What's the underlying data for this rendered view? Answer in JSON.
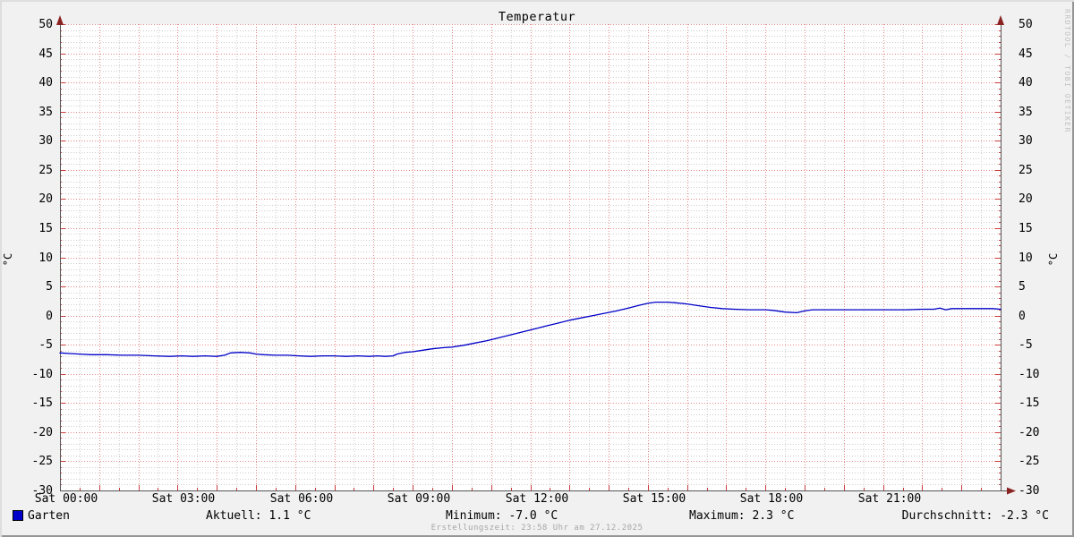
{
  "title": "Temperatur",
  "watermark": "RRDTOOL / TOBI OETIKER",
  "footer": "Erstellungszeit: 23:58 Uhr am 27.12.2025",
  "y_axis": {
    "unit_left": "°C",
    "unit_right": "°C",
    "ticks": [
      50,
      45,
      40,
      35,
      30,
      25,
      20,
      15,
      10,
      5,
      0,
      -5,
      -10,
      -15,
      -20,
      -25,
      -30
    ]
  },
  "x_axis": {
    "labels": [
      {
        "hour": 0,
        "text": "Sat 00:00"
      },
      {
        "hour": 3,
        "text": "Sat 03:00"
      },
      {
        "hour": 6,
        "text": "Sat 06:00"
      },
      {
        "hour": 9,
        "text": "Sat 09:00"
      },
      {
        "hour": 12,
        "text": "Sat 12:00"
      },
      {
        "hour": 15,
        "text": "Sat 15:00"
      },
      {
        "hour": 18,
        "text": "Sat 18:00"
      },
      {
        "hour": 21,
        "text": "Sat 21:00"
      }
    ]
  },
  "legend": {
    "series_label": "Garten",
    "series_color": "#0000c8",
    "aktuell": "Aktuell: 1.1 °C",
    "minimum": "Minimum: -7.0 °C",
    "maximum": "Maximum: 2.3 °C",
    "durchschnitt": "Durchschnitt: -2.3 °C"
  },
  "colors": {
    "background": "#f1f1f1",
    "canvas": "#ffffff",
    "major_grid": "#e06060",
    "minor_grid": "#cdcdcd",
    "axis": "#555555",
    "arrow": "#8b2222",
    "tick": "#cc3c3c",
    "line": "#0000c8",
    "watermark": "#c2c2c2",
    "footer_text": "#a6a6a6"
  },
  "chart_data": {
    "type": "line",
    "title": "Temperatur",
    "xlabel": "",
    "ylabel": "°C",
    "ylim": [
      -30,
      50
    ],
    "xlim_hours": [
      0,
      24
    ],
    "x_tick_labels": [
      "Sat 00:00",
      "Sat 03:00",
      "Sat 06:00",
      "Sat 09:00",
      "Sat 12:00",
      "Sat 15:00",
      "Sat 18:00",
      "Sat 21:00"
    ],
    "grid": {
      "x_major_hours": 1,
      "x_minor_hours": 0.5,
      "y_major": 5,
      "y_minor": 1,
      "style": "dotted"
    },
    "legend_position": "bottom",
    "stats": {
      "aktuell_c": 1.1,
      "minimum_c": -7.0,
      "maximum_c": 2.3,
      "durchschnitt_c": -2.3
    },
    "series": [
      {
        "name": "Garten",
        "color": "#0000c8",
        "points_hours_celsius": [
          [
            0.0,
            -6.4
          ],
          [
            0.25,
            -6.5
          ],
          [
            0.5,
            -6.6
          ],
          [
            0.8,
            -6.7
          ],
          [
            1.2,
            -6.7
          ],
          [
            1.6,
            -6.8
          ],
          [
            2.0,
            -6.8
          ],
          [
            2.4,
            -6.9
          ],
          [
            2.8,
            -7.0
          ],
          [
            3.1,
            -6.9
          ],
          [
            3.4,
            -7.0
          ],
          [
            3.7,
            -6.9
          ],
          [
            4.0,
            -7.0
          ],
          [
            4.2,
            -6.8
          ],
          [
            4.35,
            -6.4
          ],
          [
            4.6,
            -6.3
          ],
          [
            4.85,
            -6.4
          ],
          [
            5.0,
            -6.6
          ],
          [
            5.2,
            -6.7
          ],
          [
            5.5,
            -6.8
          ],
          [
            5.8,
            -6.8
          ],
          [
            6.1,
            -6.9
          ],
          [
            6.4,
            -7.0
          ],
          [
            6.7,
            -6.9
          ],
          [
            7.0,
            -6.9
          ],
          [
            7.3,
            -7.0
          ],
          [
            7.6,
            -6.9
          ],
          [
            7.9,
            -7.0
          ],
          [
            8.1,
            -6.9
          ],
          [
            8.3,
            -7.0
          ],
          [
            8.5,
            -6.9
          ],
          [
            8.6,
            -6.6
          ],
          [
            8.8,
            -6.3
          ],
          [
            9.0,
            -6.2
          ],
          [
            9.2,
            -6.0
          ],
          [
            9.5,
            -5.7
          ],
          [
            9.8,
            -5.5
          ],
          [
            10.0,
            -5.4
          ],
          [
            10.3,
            -5.1
          ],
          [
            10.6,
            -4.7
          ],
          [
            10.9,
            -4.3
          ],
          [
            11.2,
            -3.8
          ],
          [
            11.5,
            -3.3
          ],
          [
            11.8,
            -2.8
          ],
          [
            12.1,
            -2.3
          ],
          [
            12.4,
            -1.8
          ],
          [
            12.7,
            -1.3
          ],
          [
            13.0,
            -0.8
          ],
          [
            13.3,
            -0.4
          ],
          [
            13.6,
            0.0
          ],
          [
            13.9,
            0.4
          ],
          [
            14.2,
            0.8
          ],
          [
            14.5,
            1.3
          ],
          [
            14.8,
            1.8
          ],
          [
            15.0,
            2.1
          ],
          [
            15.2,
            2.3
          ],
          [
            15.5,
            2.3
          ],
          [
            15.7,
            2.2
          ],
          [
            16.0,
            2.0
          ],
          [
            16.3,
            1.7
          ],
          [
            16.6,
            1.4
          ],
          [
            16.9,
            1.2
          ],
          [
            17.2,
            1.1
          ],
          [
            17.6,
            1.0
          ],
          [
            18.0,
            1.0
          ],
          [
            18.2,
            0.9
          ],
          [
            18.5,
            0.6
          ],
          [
            18.8,
            0.5
          ],
          [
            19.0,
            0.8
          ],
          [
            19.2,
            1.0
          ],
          [
            19.6,
            1.0
          ],
          [
            20.0,
            1.0
          ],
          [
            20.4,
            1.0
          ],
          [
            20.8,
            1.0
          ],
          [
            21.2,
            1.0
          ],
          [
            21.6,
            1.0
          ],
          [
            22.0,
            1.1
          ],
          [
            22.3,
            1.1
          ],
          [
            22.45,
            1.3
          ],
          [
            22.6,
            1.0
          ],
          [
            22.75,
            1.2
          ],
          [
            23.1,
            1.2
          ],
          [
            23.5,
            1.2
          ],
          [
            23.8,
            1.2
          ],
          [
            24.0,
            1.1
          ]
        ]
      }
    ]
  }
}
